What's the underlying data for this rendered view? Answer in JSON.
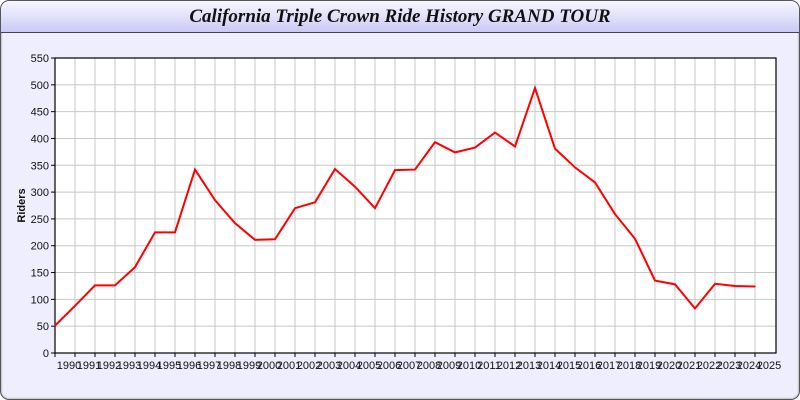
{
  "chart_data": {
    "type": "line",
    "title": "California Triple Crown Ride History GRAND TOUR",
    "xlabel": "",
    "ylabel": "Riders",
    "ylim": [
      0,
      550
    ],
    "yticks": [
      0,
      50,
      100,
      150,
      200,
      250,
      300,
      350,
      400,
      450,
      500,
      550
    ],
    "grid": true,
    "x": [
      "1990",
      "1991",
      "1992",
      "1993",
      "1994",
      "1995",
      "1996",
      "1997",
      "1998",
      "1999",
      "2000",
      "2001",
      "2002",
      "2003",
      "2004",
      "2005",
      "2006",
      "2007",
      "2008",
      "2009",
      "2010",
      "2011",
      "2012",
      "2013",
      "2014",
      "2015",
      "2016",
      "2017",
      "2018",
      "2019",
      "2020",
      "2021",
      "2022",
      "2023",
      "2024",
      "2025"
    ],
    "series": [
      {
        "color": "#ff0000",
        "values": [
          51,
          88,
          126,
          126,
          160,
          225,
          225,
          342,
          285,
          242,
          211,
          212,
          270,
          281,
          343,
          310,
          270,
          341,
          342,
          393,
          374,
          383,
          411,
          385,
          494,
          381,
          346,
          318,
          259,
          213,
          135,
          128,
          83,
          129,
          125,
          124
        ]
      }
    ]
  }
}
